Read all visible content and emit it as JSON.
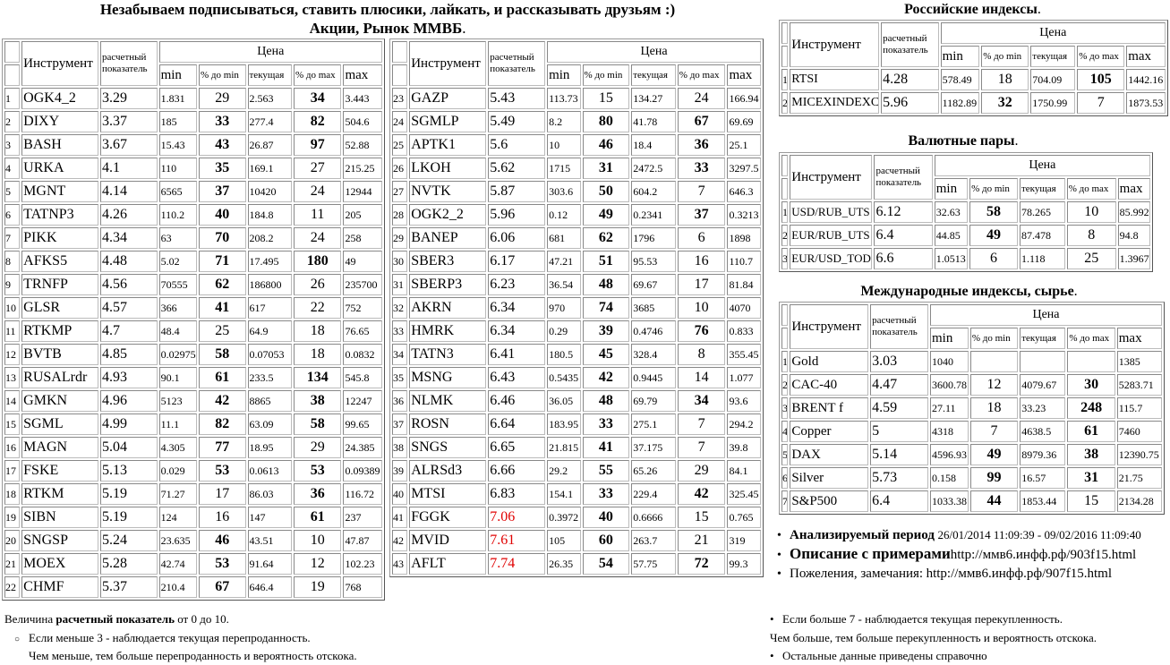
{
  "header": {
    "line1": "Незабываем подписываться, ставить плюсики, лайкать, и рассказывать друзьям :)",
    "line2": "Акции, Рынок ММВБ",
    "dot": "."
  },
  "columns": {
    "instrument": "Инструмент",
    "calc": "расчетный показатель",
    "price": "Цена",
    "min": "min",
    "pct_min": "% до min",
    "current": "текущая",
    "pct_max": "% до max",
    "max": "max"
  },
  "stocks_left": [
    [
      "1",
      "OGK4_2",
      "3.29",
      "1.831",
      "29",
      "2.563",
      "34",
      "3.443"
    ],
    [
      "2",
      "DIXY",
      "3.37",
      "185",
      "33",
      "277.4",
      "82",
      "504.6"
    ],
    [
      "3",
      "BASH",
      "3.67",
      "15.43",
      "43",
      "26.87",
      "97",
      "52.88"
    ],
    [
      "4",
      "URKA",
      "4.1",
      "110",
      "35",
      "169.1",
      "27",
      "215.25"
    ],
    [
      "5",
      "MGNT",
      "4.14",
      "6565",
      "37",
      "10420",
      "24",
      "12944"
    ],
    [
      "6",
      "TATNP3",
      "4.26",
      "110.2",
      "40",
      "184.8",
      "11",
      "205"
    ],
    [
      "7",
      "PIKK",
      "4.34",
      "63",
      "70",
      "208.2",
      "24",
      "258"
    ],
    [
      "8",
      "AFKS5",
      "4.48",
      "5.02",
      "71",
      "17.495",
      "180",
      "49"
    ],
    [
      "9",
      "TRNFP",
      "4.56",
      "70555",
      "62",
      "186800",
      "26",
      "235700"
    ],
    [
      "10",
      "GLSR",
      "4.57",
      "366",
      "41",
      "617",
      "22",
      "752"
    ],
    [
      "11",
      "RTKMP",
      "4.7",
      "48.4",
      "25",
      "64.9",
      "18",
      "76.65"
    ],
    [
      "12",
      "BVTB",
      "4.85",
      "0.02975",
      "58",
      "0.07053",
      "18",
      "0.0832"
    ],
    [
      "13",
      "RUSALrdr",
      "4.93",
      "90.1",
      "61",
      "233.5",
      "134",
      "545.8"
    ],
    [
      "14",
      "GMKN",
      "4.96",
      "5123",
      "42",
      "8865",
      "38",
      "12247"
    ],
    [
      "15",
      "SGML",
      "4.99",
      "11.1",
      "82",
      "63.09",
      "58",
      "99.65"
    ],
    [
      "16",
      "MAGN",
      "5.04",
      "4.305",
      "77",
      "18.95",
      "29",
      "24.385"
    ],
    [
      "17",
      "FSKE",
      "5.13",
      "0.029",
      "53",
      "0.0613",
      "53",
      "0.09389"
    ],
    [
      "18",
      "RTKM",
      "5.19",
      "71.27",
      "17",
      "86.03",
      "36",
      "116.72"
    ],
    [
      "19",
      "SIBN",
      "5.19",
      "124",
      "16",
      "147",
      "61",
      "237"
    ],
    [
      "20",
      "SNGSP",
      "5.24",
      "23.635",
      "46",
      "43.51",
      "10",
      "47.87"
    ],
    [
      "21",
      "MOEX",
      "5.28",
      "42.74",
      "53",
      "91.64",
      "12",
      "102.23"
    ],
    [
      "22",
      "CHMF",
      "5.37",
      "210.4",
      "67",
      "646.4",
      "19",
      "768"
    ]
  ],
  "stocks_right": [
    [
      "23",
      "GAZP",
      "5.43",
      "113.73",
      "15",
      "134.27",
      "24",
      "166.94"
    ],
    [
      "24",
      "SGMLP",
      "5.49",
      "8.2",
      "80",
      "41.78",
      "67",
      "69.69"
    ],
    [
      "25",
      "APTK1",
      "5.6",
      "10",
      "46",
      "18.4",
      "36",
      "25.1"
    ],
    [
      "26",
      "LKOH",
      "5.62",
      "1715",
      "31",
      "2472.5",
      "33",
      "3297.5"
    ],
    [
      "27",
      "NVTK",
      "5.87",
      "303.6",
      "50",
      "604.2",
      "7",
      "646.3"
    ],
    [
      "28",
      "OGK2_2",
      "5.96",
      "0.12",
      "49",
      "0.2341",
      "37",
      "0.3213"
    ],
    [
      "29",
      "BANEP",
      "6.06",
      "681",
      "62",
      "1796",
      "6",
      "1898"
    ],
    [
      "30",
      "SBER3",
      "6.17",
      "47.21",
      "51",
      "95.53",
      "16",
      "110.7"
    ],
    [
      "31",
      "SBERP3",
      "6.23",
      "36.54",
      "48",
      "69.67",
      "17",
      "81.84"
    ],
    [
      "32",
      "AKRN",
      "6.34",
      "970",
      "74",
      "3685",
      "10",
      "4070"
    ],
    [
      "33",
      "HMRK",
      "6.34",
      "0.29",
      "39",
      "0.4746",
      "76",
      "0.833"
    ],
    [
      "34",
      "TATN3",
      "6.41",
      "180.5",
      "45",
      "328.4",
      "8",
      "355.45"
    ],
    [
      "35",
      "MSNG",
      "6.43",
      "0.5435",
      "42",
      "0.9445",
      "14",
      "1.077"
    ],
    [
      "36",
      "NLMK",
      "6.46",
      "36.05",
      "48",
      "69.79",
      "34",
      "93.6"
    ],
    [
      "37",
      "ROSN",
      "6.64",
      "183.95",
      "33",
      "275.1",
      "7",
      "294.2"
    ],
    [
      "38",
      "SNGS",
      "6.65",
      "21.815",
      "41",
      "37.175",
      "7",
      "39.8"
    ],
    [
      "39",
      "ALRSd3",
      "6.66",
      "29.2",
      "55",
      "65.26",
      "29",
      "84.1"
    ],
    [
      "40",
      "MTSI",
      "6.83",
      "154.1",
      "33",
      "229.4",
      "42",
      "325.45"
    ],
    [
      "41",
      "FGGK",
      "7.06",
      "0.3972",
      "40",
      "0.6666",
      "15",
      "0.765"
    ],
    [
      "42",
      "MVID",
      "7.61",
      "105",
      "60",
      "263.7",
      "21",
      "319"
    ],
    [
      "43",
      "AFLT",
      "7.74",
      "26.35",
      "54",
      "57.75",
      "72",
      "99.3"
    ]
  ],
  "russian_indices": {
    "title": "Российские индексы",
    "rows": [
      [
        "1",
        "RTSI",
        "4.28",
        "578.49",
        "18",
        "704.09",
        "105",
        "1442.16"
      ],
      [
        "2",
        "MICEXINDEXCF",
        "5.96",
        "1182.89",
        "32",
        "1750.99",
        "7",
        "1873.53"
      ]
    ]
  },
  "currency_pairs": {
    "title": "Валютные пары",
    "rows": [
      [
        "1",
        "USD/RUB_UTS",
        "6.12",
        "32.63",
        "58",
        "78.265",
        "10",
        "85.992"
      ],
      [
        "2",
        "EUR/RUB_UTS",
        "6.4",
        "44.85",
        "49",
        "87.478",
        "8",
        "94.8"
      ],
      [
        "3",
        "EUR/USD_TOD",
        "6.6",
        "1.0513",
        "6",
        "1.118",
        "25",
        "1.3967"
      ]
    ]
  },
  "international": {
    "title": "Международные индексы, сырье",
    "rows": [
      [
        "1",
        "Gold",
        "3.03",
        "1040",
        "",
        "",
        "",
        "1385"
      ],
      [
        "2",
        "CAC-40",
        "4.47",
        "3600.78",
        "12",
        "4079.67",
        "30",
        "5283.71"
      ],
      [
        "3",
        "BRENT f",
        "4.59",
        "27.11",
        "18",
        "33.23",
        "248",
        "115.7"
      ],
      [
        "4",
        "Copper",
        "5",
        "4318",
        "7",
        "4638.5",
        "61",
        "7460"
      ],
      [
        "5",
        "DAX",
        "5.14",
        "4596.93",
        "49",
        "8979.36",
        "38",
        "12390.75"
      ],
      [
        "6",
        "Silver",
        "5.73",
        "0.158",
        "99",
        "16.57",
        "31",
        "21.75"
      ],
      [
        "7",
        "S&P500",
        "6.4",
        "1033.38",
        "44",
        "1853.44",
        "15",
        "2134.28"
      ]
    ]
  },
  "info": {
    "period_label": "Анализируемый период",
    "period_value": "26/01/2014 11:09:39 - 09/02/2016 11:09:40",
    "description_label": "Описание с примерами",
    "description_link": "http://ммв6.инфф.рф/903f15.html",
    "feedback_label": "Пожеления, замечания:",
    "feedback_link": "http://ммв6.инфф.рф/907f15.html"
  },
  "legend": {
    "intro_pre": "Величина ",
    "intro_bold": "расчетный показатель",
    "intro_post": " от 0 до 10.",
    "low_1": "Если меньше 3 - наблюдается текущая перепроданность.",
    "low_2": "Чем меньше, тем больше перепроданность и вероятность отскока.",
    "high_1": "Если больше 7 - наблюдается текущая перекупленность.",
    "high_2": "Чем больше, тем больше перекупленность и вероятность отскока.",
    "other": "Остальные данные приведены справочно"
  }
}
